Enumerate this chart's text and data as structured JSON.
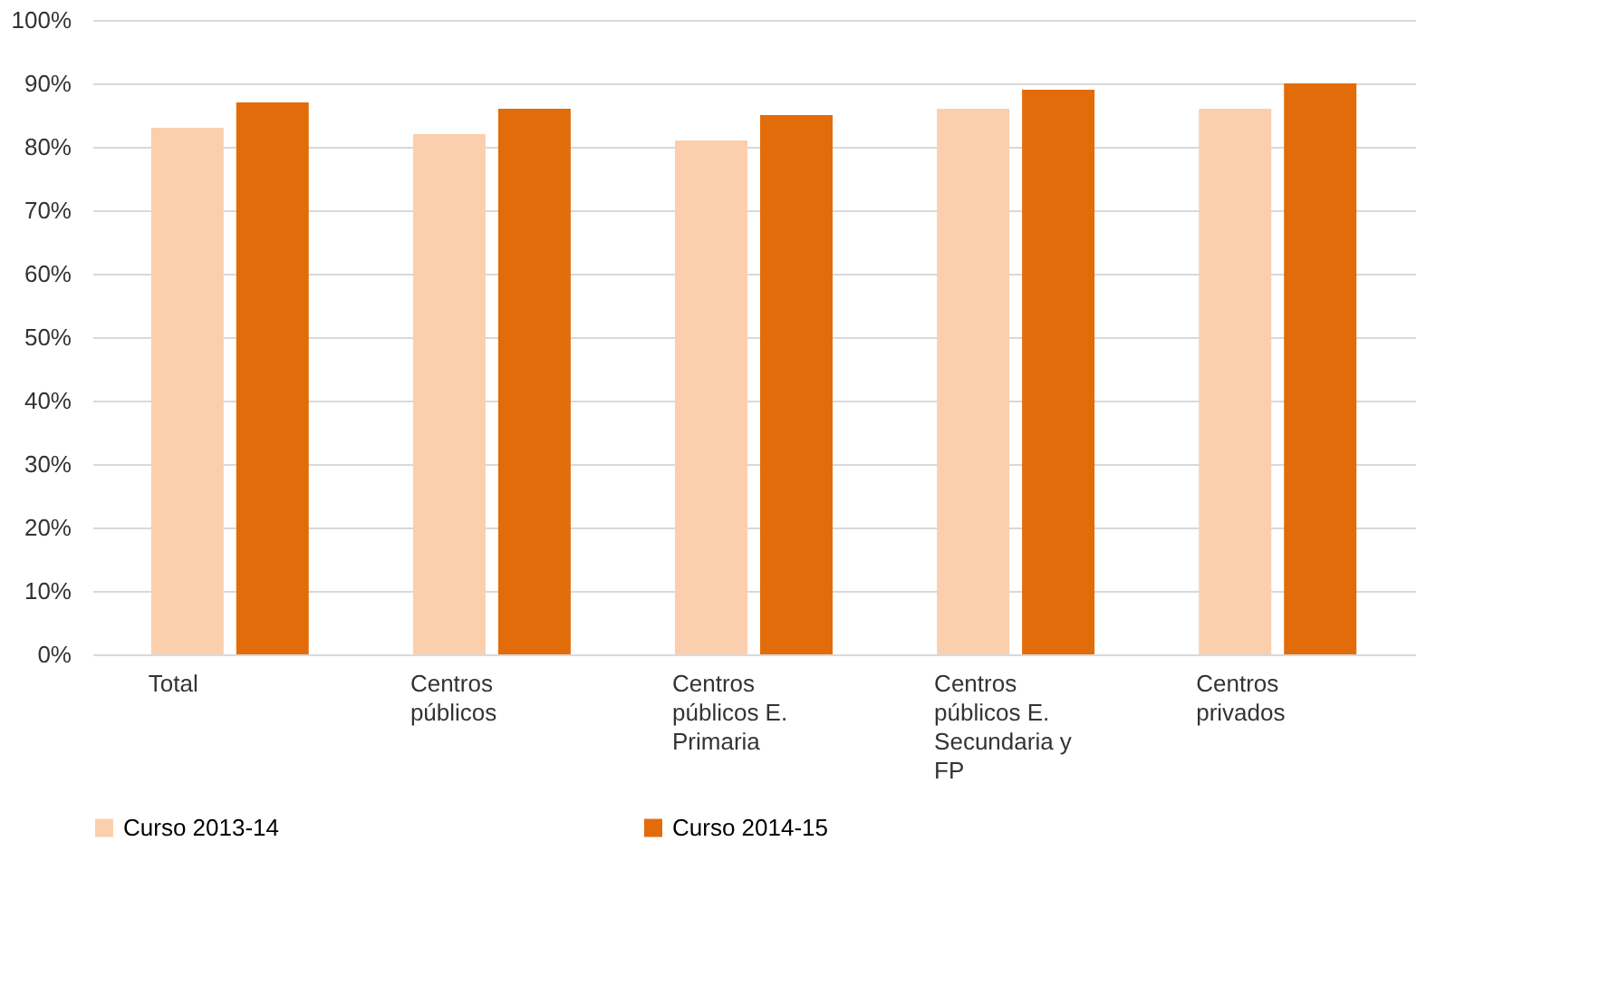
{
  "chart_data": {
    "type": "bar",
    "categories": [
      "Total",
      "Centros públicos",
      "Centros públicos E. Primaria",
      "Centros públicos E. Secundaria y FP",
      "Centros privados"
    ],
    "series": [
      {
        "name": "Curso 2013-14",
        "color": "#fbcfad",
        "values": [
          83,
          82,
          81,
          86,
          86
        ]
      },
      {
        "name": "Curso 2014-15",
        "color": "#e36c0a",
        "values": [
          87,
          86,
          85,
          89,
          90
        ]
      }
    ],
    "ylim": [
      0,
      100
    ],
    "yticks": [
      {
        "value": 0,
        "label": "0%"
      },
      {
        "value": 10,
        "label": "10%"
      },
      {
        "value": 20,
        "label": "20%"
      },
      {
        "value": 30,
        "label": "30%"
      },
      {
        "value": 40,
        "label": "40%"
      },
      {
        "value": 50,
        "label": "50%"
      },
      {
        "value": 60,
        "label": "60%"
      },
      {
        "value": 70,
        "label": "70%"
      },
      {
        "value": 80,
        "label": "80%"
      },
      {
        "value": 90,
        "label": "90%"
      },
      {
        "value": 100,
        "label": "100%"
      }
    ],
    "grid": "y",
    "legend": "bottom"
  }
}
